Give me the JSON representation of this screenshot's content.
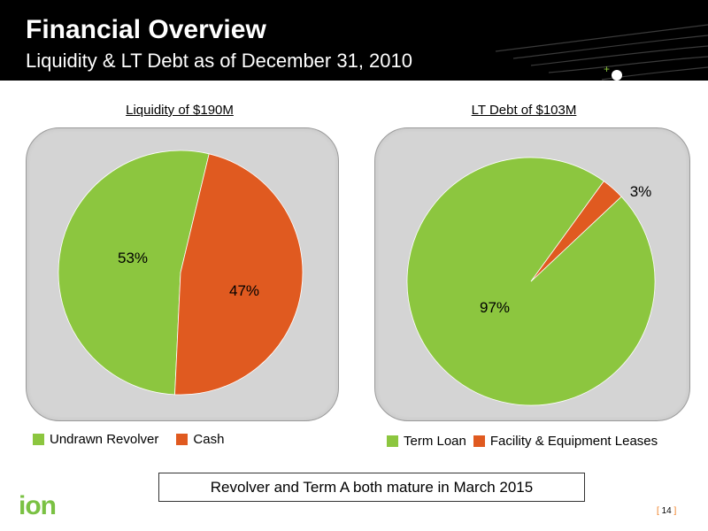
{
  "header": {
    "title": "Financial Overview",
    "subtitle": "Liquidity & LT Debt as of December 31, 2010"
  },
  "colors": {
    "green": "#8cc63f",
    "orange": "#e05a20",
    "panel": "#d4d4d4"
  },
  "chart_data": [
    {
      "type": "pie",
      "title": "Liquidity of $190M",
      "slices": [
        {
          "label": "Undrawn Revolver",
          "value": 53,
          "display": "53%"
        },
        {
          "label": "Cash",
          "value": 47,
          "display": "47%"
        }
      ],
      "legend": "bottom"
    },
    {
      "type": "pie",
      "title": "LT Debt of $103M",
      "slices": [
        {
          "label": "Term Loan",
          "value": 97,
          "display": "97%"
        },
        {
          "label": "Facility & Equipment Leases",
          "value": 3,
          "display": "3%"
        }
      ],
      "legend": "bottom"
    }
  ],
  "footer": {
    "note": "Revolver and Term A both mature in March 2015",
    "logo": "ion",
    "page_number": "14",
    "bracket_open": "[",
    "bracket_close": "]"
  }
}
